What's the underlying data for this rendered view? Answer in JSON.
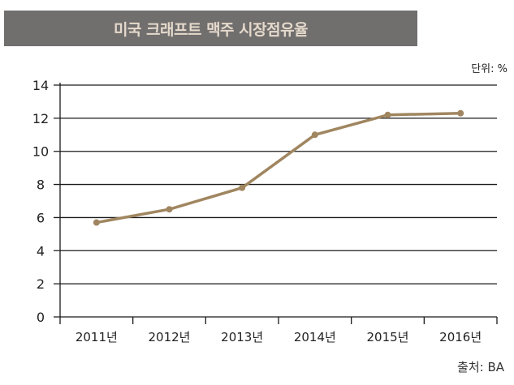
{
  "chart_data": {
    "type": "line",
    "title": "미국 크래프트 맥주 시장점유율",
    "unit_label": "단위: %",
    "source": "출처: BA",
    "categories": [
      "2011년",
      "2012년",
      "2013년",
      "2014년",
      "2015년",
      "2016년"
    ],
    "series": [
      {
        "name": "시장점유율",
        "values": [
          5.7,
          6.5,
          7.8,
          11.0,
          12.2,
          12.3
        ]
      }
    ],
    "yticks": [
      "0",
      "2",
      "4",
      "6",
      "8",
      "10",
      "12",
      "14"
    ],
    "ylim": [
      0,
      14
    ],
    "xlabel": "",
    "ylabel": "",
    "grid": true,
    "line_color": "#a08660",
    "title_bg": "#716e6e",
    "title_color": "#e4d9cb"
  }
}
